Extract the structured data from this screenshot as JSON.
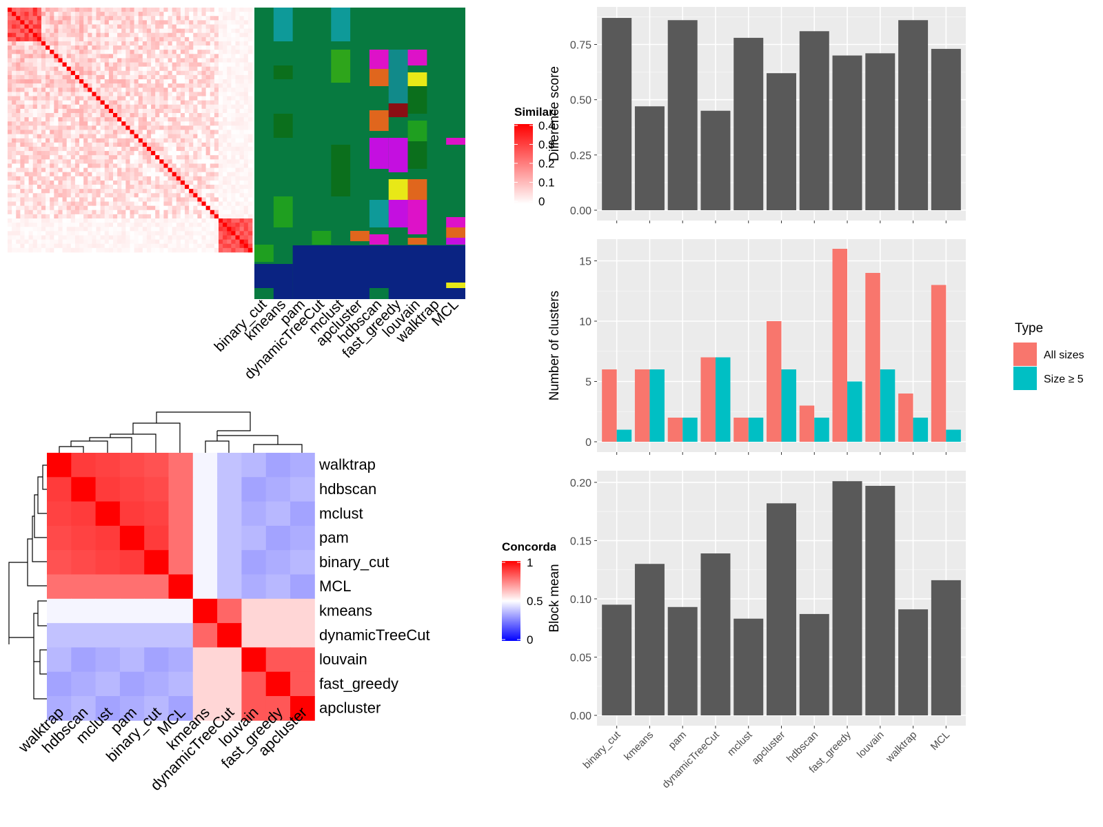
{
  "similarity_heatmap": {
    "legend_title": "Similarity",
    "legend_ticks": [
      "0.4",
      "0.3",
      "0.2",
      "0.1",
      "0"
    ],
    "legend_colors": [
      "#ffffff",
      "#ff0000"
    ],
    "method_labels": [
      "binary_cut",
      "kmeans",
      "pam",
      "dynamicTreeCut",
      "mclust",
      "apcluster",
      "hdbscan",
      "fast_greedy",
      "louvain",
      "walktrap",
      "MCL"
    ]
  },
  "concordance_heatmap": {
    "legend_title": "Concordance",
    "legend_ticks": [
      "1",
      "0.5",
      "0"
    ],
    "legend_colors": [
      "#0000ff",
      "#ffffff",
      "#ff0000"
    ],
    "row_labels": [
      "walktrap",
      "hdbscan",
      "mclust",
      "pam",
      "binary_cut",
      "MCL",
      "kmeans",
      "dynamicTreeCut",
      "louvain",
      "fast_greedy",
      "apcluster"
    ],
    "column_labels": [
      "walktrap",
      "hdbscan",
      "mclust",
      "pam",
      "binary_cut",
      "MCL",
      "kmeans",
      "dynamicTreeCut",
      "louvain",
      "fast_greedy",
      "apcluster"
    ]
  },
  "chart_data": [
    {
      "type": "bar",
      "categories": [
        "binary_cut",
        "kmeans",
        "pam",
        "dynamicTreeCut",
        "mclust",
        "apcluster",
        "hdbscan",
        "fast_greedy",
        "louvain",
        "walktrap",
        "MCL"
      ],
      "values": [
        0.87,
        0.47,
        0.86,
        0.45,
        0.78,
        0.62,
        0.81,
        0.7,
        0.71,
        0.86,
        0.73
      ],
      "ylabel": "Difference score",
      "ylim": [
        0,
        0.92
      ],
      "yticks": [
        "0.00",
        "0.25",
        "0.50",
        "0.75"
      ],
      "bar_color": "#595959",
      "grid": true
    },
    {
      "type": "bar",
      "categories": [
        "binary_cut",
        "kmeans",
        "pam",
        "dynamicTreeCut",
        "mclust",
        "apcluster",
        "hdbscan",
        "fast_greedy",
        "louvain",
        "walktrap",
        "MCL"
      ],
      "series": [
        {
          "name": "All sizes",
          "values": [
            6,
            6,
            2,
            7,
            2,
            10,
            3,
            16,
            14,
            4,
            13
          ],
          "color": "#f8766d"
        },
        {
          "name": "Size ≥ 5",
          "values": [
            1,
            6,
            2,
            7,
            2,
            6,
            2,
            5,
            6,
            2,
            1
          ],
          "color": "#00bfc4"
        }
      ],
      "ylabel": "Number of clusters",
      "ylim": [
        0,
        16.8
      ],
      "yticks": [
        "0",
        "5",
        "10",
        "15"
      ],
      "legend_title": "Type",
      "legend_position": "right",
      "grid": true
    },
    {
      "type": "bar",
      "categories": [
        "binary_cut",
        "kmeans",
        "pam",
        "dynamicTreeCut",
        "mclust",
        "apcluster",
        "hdbscan",
        "fast_greedy",
        "louvain",
        "walktrap",
        "MCL"
      ],
      "values": [
        0.095,
        0.13,
        0.093,
        0.139,
        0.083,
        0.182,
        0.087,
        0.201,
        0.197,
        0.091,
        0.116
      ],
      "ylabel": "Block mean",
      "ylim": [
        0,
        0.21
      ],
      "yticks": [
        "0.00",
        "0.05",
        "0.10",
        "0.15",
        "0.20"
      ],
      "bar_color": "#595959",
      "grid": true
    }
  ]
}
